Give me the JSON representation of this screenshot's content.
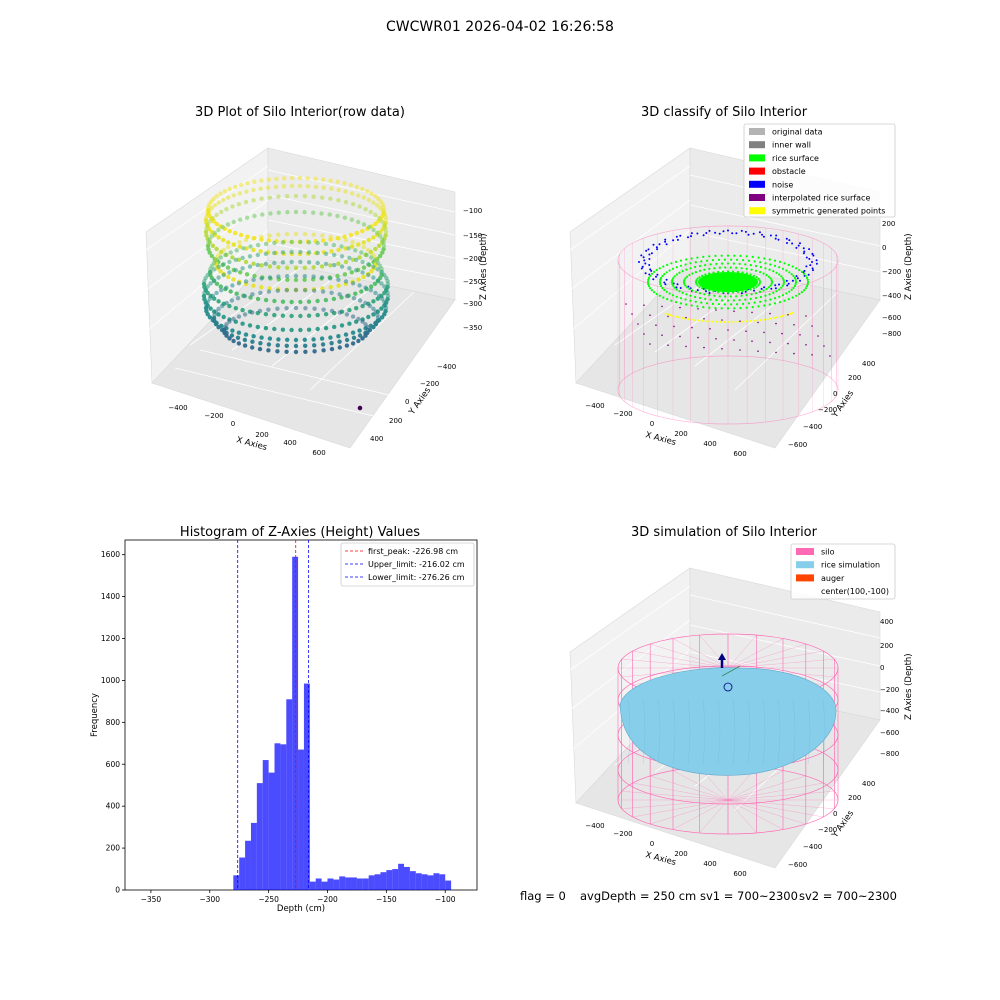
{
  "figure": {
    "suptitle": "CWCWR01 2026-04-02 16:26:58",
    "footer": {
      "flag": "flag = 0",
      "avg_depth": "avgDepth = 250 cm",
      "sv1": "sv1 = 700~2300",
      "sv2": "sv2 = 700~2300"
    }
  },
  "colors": {
    "viridis_low": "#3b528b",
    "viridis_mid": "#21918c",
    "viridis_high": "#fde725",
    "hist_bar": "#0000ff",
    "silo": "#ff69b4",
    "rice_simulation": "#87ceeb",
    "auger": "#ff4500",
    "rice_surface": "#00ff00",
    "noise": "#0000ff",
    "obstacle": "#ff0000",
    "inner_wall": "#808080",
    "original_data": "#b3b3b3",
    "interpolated": "#800080",
    "symmetric": "#ffff00"
  },
  "chart_data": [
    {
      "type": "scatter",
      "projection": "3d",
      "title": "3D Plot of Silo Interior(row data)",
      "xlabel": "X Axies",
      "ylabel": "Y Axies",
      "zlabel": "Z Axies (Depth)",
      "x_ticks": [
        "−400",
        "−200",
        "0",
        "200",
        "400",
        "600"
      ],
      "y_ticks": [
        "−400",
        "−200",
        "0",
        "200",
        "400"
      ],
      "z_ticks": [
        "−100",
        "−150",
        "−200",
        "−250",
        "−300",
        "−350"
      ],
      "zlim": [
        -370,
        -90
      ]
    },
    {
      "type": "scatter",
      "projection": "3d",
      "title": "3D classify of Silo Interior",
      "xlabel": "X Axies",
      "ylabel": "Y Axies",
      "zlabel": "Z Axies (Depth)",
      "x_ticks": [
        "−400",
        "−200",
        "0",
        "200",
        "400",
        "600"
      ],
      "y_ticks": [
        "−600",
        "−400",
        "−200",
        "0",
        "200",
        "400"
      ],
      "z_ticks": [
        "200",
        "0",
        "−200",
        "−400",
        "−600",
        "−800"
      ],
      "legend": [
        "original data",
        "inner wall",
        "rice surface",
        "obstacle",
        "noise",
        "interpolated rice surface",
        "symmetric generated points"
      ],
      "legend_position": "top-right"
    },
    {
      "type": "bar",
      "title": "Histogram of Z-Axies (Height) Values",
      "xlabel": "Depth (cm)",
      "ylabel": "Frequency",
      "xlim": [
        -372,
        -73
      ],
      "ylim": [
        0,
        1670
      ],
      "x_ticks": [
        -350,
        -300,
        -250,
        -200,
        -150,
        -100
      ],
      "y_ticks": [
        0,
        200,
        400,
        600,
        800,
        1000,
        1200,
        1400,
        1600
      ],
      "bin_width": 5,
      "bins": [
        [
          -280,
          70
        ],
        [
          -275,
          155
        ],
        [
          -270,
          235
        ],
        [
          -265,
          320
        ],
        [
          -260,
          510
        ],
        [
          -255,
          620
        ],
        [
          -250,
          560
        ],
        [
          -245,
          700
        ],
        [
          -240,
          695
        ],
        [
          -235,
          910
        ],
        [
          -230,
          1590
        ],
        [
          -225,
          670
        ],
        [
          -220,
          985
        ],
        [
          -215,
          40
        ],
        [
          -210,
          55
        ],
        [
          -205,
          40
        ],
        [
          -200,
          55
        ],
        [
          -195,
          50
        ],
        [
          -190,
          65
        ],
        [
          -185,
          60
        ],
        [
          -180,
          60
        ],
        [
          -175,
          55
        ],
        [
          -170,
          55
        ],
        [
          -165,
          70
        ],
        [
          -160,
          75
        ],
        [
          -155,
          85
        ],
        [
          -150,
          95
        ],
        [
          -145,
          100
        ],
        [
          -140,
          125
        ],
        [
          -135,
          110
        ],
        [
          -130,
          90
        ],
        [
          -125,
          80
        ],
        [
          -120,
          75
        ],
        [
          -115,
          70
        ],
        [
          -110,
          80
        ],
        [
          -105,
          75
        ],
        [
          -100,
          45
        ]
      ],
      "lines": [
        {
          "label": "first_peak: -226.98 cm",
          "x": -226.98,
          "color": "#ff0000"
        },
        {
          "label": "Upper_limit: -216.02 cm",
          "x": -216.02,
          "color": "#0000ff"
        },
        {
          "label": "Lower_limit: -276.26 cm",
          "x": -276.26,
          "color": "#0000ff"
        }
      ],
      "legend_position": "top-right"
    },
    {
      "type": "scatter",
      "projection": "3d",
      "title": "3D simulation of Silo Interior",
      "xlabel": "X Axies",
      "ylabel": "Y Axies",
      "zlabel": "Z Axies (Depth)",
      "x_ticks": [
        "−400",
        "−200",
        "0",
        "200",
        "400",
        "600"
      ],
      "y_ticks": [
        "−600",
        "−400",
        "−200",
        "0",
        "200",
        "400"
      ],
      "z_ticks": [
        "400",
        "200",
        "0",
        "−200",
        "−400",
        "−600",
        "−800"
      ],
      "legend": [
        "silo",
        "rice simulation",
        "auger",
        "center(100,-100)"
      ],
      "legend_position": "top-right"
    }
  ]
}
